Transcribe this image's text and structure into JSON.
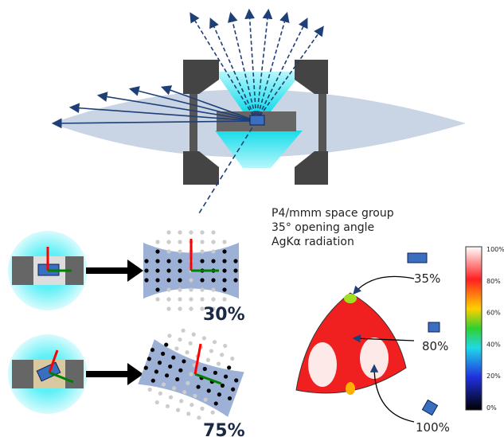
{
  "setup": {
    "annotation_lines": [
      "P4/mmm space group",
      "35° opening angle",
      "AgKα radiation"
    ]
  },
  "orientations": [
    {
      "label": "30%"
    },
    {
      "label": "75%"
    }
  ],
  "figure": {
    "points": [
      {
        "label": "35%"
      },
      {
        "label": "80%"
      },
      {
        "label": "100%"
      }
    ]
  },
  "colorbar": {
    "labels": [
      "100%",
      "80%",
      "60%",
      "40%",
      "20%",
      "0%"
    ]
  }
}
